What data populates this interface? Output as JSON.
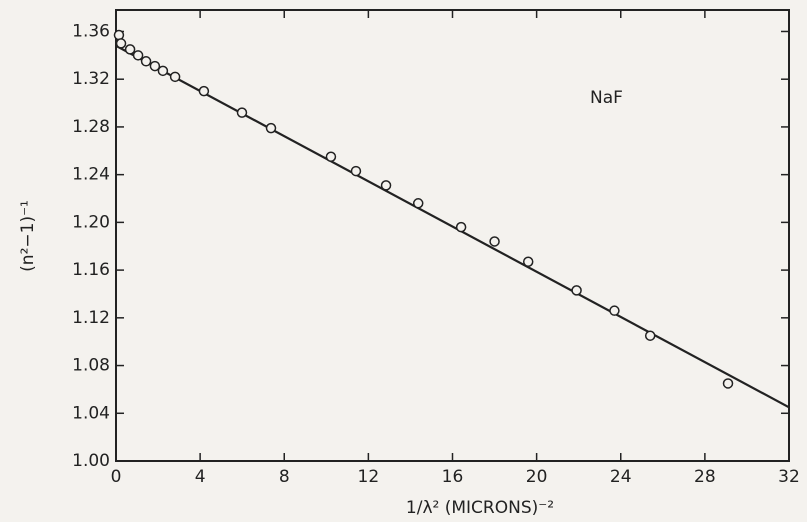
{
  "chart_data": {
    "type": "scatter",
    "annotation": "NaF",
    "xlabel": "1/λ² (MICRONS)⁻²",
    "ylabel": "(n²−1)⁻¹",
    "xlim": [
      0,
      32
    ],
    "xticks": [
      0,
      4,
      8,
      12,
      16,
      20,
      24,
      28,
      32
    ],
    "ylim": [
      1.0,
      1.378
    ],
    "yticks": [
      {
        "value": 1.0,
        "label": "1.00"
      },
      1.04,
      1.08,
      1.12,
      1.16,
      {
        "value": 1.2,
        "label": "1.20"
      },
      1.24,
      1.28,
      1.32,
      1.36
    ],
    "color": "#222222",
    "series": [
      {
        "x": [
          0.14,
          0.24,
          0.67,
          1.05,
          1.43,
          1.85,
          2.23,
          2.81,
          4.18,
          5.99,
          7.37,
          10.22,
          11.41,
          12.84,
          14.37,
          16.41,
          18.0,
          19.6,
          21.9,
          23.7,
          25.4,
          29.1
        ],
        "values": [
          1.357,
          1.35,
          1.345,
          1.34,
          1.335,
          1.331,
          1.327,
          1.322,
          1.31,
          1.292,
          1.279,
          1.255,
          1.243,
          1.231,
          1.216,
          1.196,
          1.184,
          1.167,
          1.143,
          1.126,
          1.105,
          1.065
        ]
      }
    ],
    "fit_line": {
      "x": [
        0,
        32
      ],
      "values": [
        1.348,
        1.045
      ]
    }
  }
}
